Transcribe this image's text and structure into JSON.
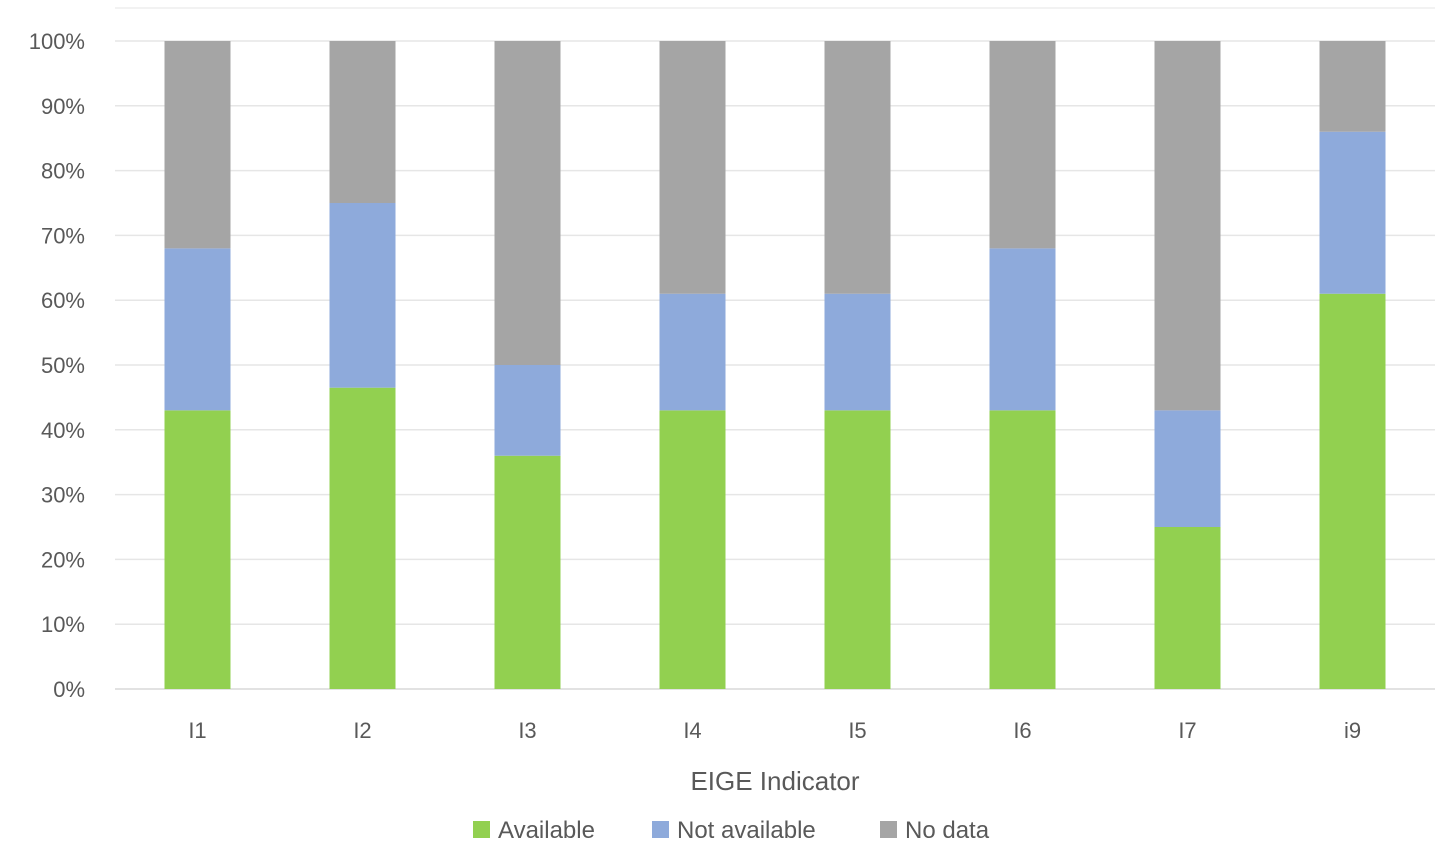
{
  "chart_data": {
    "type": "bar",
    "stacked": true,
    "title": "",
    "xlabel": "EIGE Indicator",
    "ylabel": "",
    "ylim": [
      0,
      100
    ],
    "y_ticks": [
      "0%",
      "10%",
      "20%",
      "30%",
      "40%",
      "50%",
      "60%",
      "70%",
      "80%",
      "90%",
      "100%"
    ],
    "categories": [
      "I1",
      "I2",
      "I3",
      "I4",
      "I5",
      "I6",
      "I7",
      "i9"
    ],
    "series": [
      {
        "name": "Available",
        "color": "#92d050",
        "values": [
          43,
          46.5,
          36,
          43,
          43,
          43,
          25,
          61
        ]
      },
      {
        "name": "Not available",
        "color": "#8eaadb",
        "values": [
          25,
          28.5,
          14,
          18,
          18,
          25,
          18,
          25
        ]
      },
      {
        "name": "No data",
        "color": "#a5a5a5",
        "values": [
          32,
          25,
          50,
          39,
          39,
          32,
          57,
          14
        ]
      }
    ],
    "grid": true,
    "legend_position": "bottom"
  }
}
